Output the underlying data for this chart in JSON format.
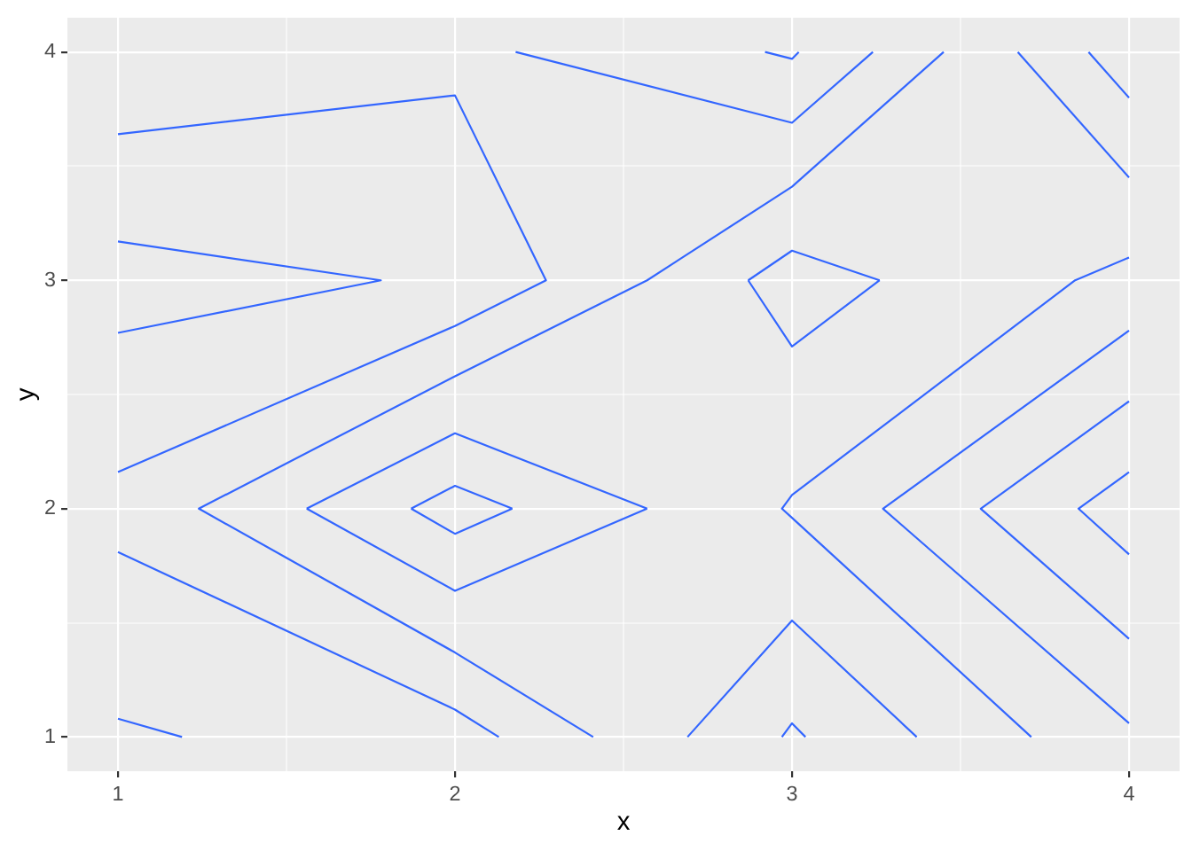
{
  "chart_data": {
    "type": "line",
    "xlabel": "x",
    "ylabel": "y",
    "xlim": [
      0.85,
      4.15
    ],
    "ylim": [
      0.85,
      4.15
    ],
    "xticks": [
      1,
      {
        "value": 1.5,
        "label": null
      },
      2,
      {
        "value": 2.5,
        "label": null
      },
      3,
      {
        "value": 3.5,
        "label": null
      },
      4
    ],
    "yticks": [
      1,
      {
        "value": 1.5,
        "label": null
      },
      2,
      {
        "value": 2.5,
        "label": null
      },
      3,
      {
        "value": 3.5,
        "label": null
      },
      4
    ],
    "grid": true,
    "marker": "none",
    "line_style": "solid",
    "series": [
      {
        "color": "#3366ff",
        "x": [
          1,
          2,
          2.27,
          2,
          1
        ],
        "values": [
          3.64,
          3.81,
          3,
          2.8,
          2.16
        ]
      },
      {
        "color": "#3366ff",
        "x": [
          1,
          1.78,
          1
        ],
        "values": [
          3.17,
          3,
          2.77
        ]
      },
      {
        "color": "#3366ff",
        "x": [
          2.18,
          3,
          3.24
        ],
        "values": [
          4,
          3.69,
          4
        ]
      },
      {
        "color": "#3366ff",
        "x": [
          2.92,
          3,
          3.02
        ],
        "values": [
          4,
          3.97,
          4
        ]
      },
      {
        "color": "#3366ff",
        "x": [
          2.41,
          2,
          1.24,
          2,
          2.57,
          3,
          3.45
        ],
        "values": [
          1,
          1.37,
          2,
          2.58,
          3,
          3.41,
          4
        ]
      },
      {
        "color": "#3366ff",
        "x": [
          1.56,
          2,
          2.57
        ],
        "values": [
          2,
          2.33,
          2
        ]
      },
      {
        "color": "#3366ff",
        "x": [
          1.56,
          2,
          2.57
        ],
        "values": [
          2,
          1.64,
          2
        ]
      },
      {
        "color": "#3366ff",
        "x": [
          1.87,
          2,
          2.17
        ],
        "values": [
          2,
          2.1,
          2
        ]
      },
      {
        "color": "#3366ff",
        "x": [
          1.87,
          2,
          2.17
        ],
        "values": [
          2,
          1.89,
          2
        ]
      },
      {
        "color": "#3366ff",
        "x": [
          1,
          2,
          2.13
        ],
        "values": [
          1.81,
          1.12,
          1
        ]
      },
      {
        "color": "#3366ff",
        "x": [
          1,
          1.19
        ],
        "values": [
          1.08,
          1
        ]
      },
      {
        "color": "#3366ff",
        "x": [
          2.69,
          3,
          3.37
        ],
        "values": [
          1,
          1.51,
          1
        ]
      },
      {
        "color": "#3366ff",
        "x": [
          2.97,
          3,
          3.04
        ],
        "values": [
          1,
          1.06,
          1
        ]
      },
      {
        "color": "#3366ff",
        "x": [
          2.87,
          3,
          3.26
        ],
        "values": [
          3,
          3.13,
          3
        ]
      },
      {
        "color": "#3366ff",
        "x": [
          2.87,
          3,
          3.26
        ],
        "values": [
          3,
          2.71,
          3
        ]
      },
      {
        "color": "#3366ff",
        "x": [
          3.71,
          3,
          2.97,
          3,
          3.84,
          4
        ],
        "values": [
          1,
          1.96,
          2,
          2.06,
          3,
          3.1
        ]
      },
      {
        "color": "#3366ff",
        "x": [
          4,
          3.27,
          4
        ],
        "values": [
          1.06,
          2,
          2.78
        ]
      },
      {
        "color": "#3366ff",
        "x": [
          4,
          3.56,
          4
        ],
        "values": [
          1.43,
          2,
          2.47
        ]
      },
      {
        "color": "#3366ff",
        "x": [
          4,
          3.85,
          4
        ],
        "values": [
          1.8,
          2,
          2.16
        ]
      },
      {
        "color": "#3366ff",
        "x": [
          3.67,
          4
        ],
        "values": [
          4,
          3.45
        ]
      },
      {
        "color": "#3366ff",
        "x": [
          3.88,
          4
        ],
        "values": [
          4,
          3.8
        ]
      }
    ]
  }
}
